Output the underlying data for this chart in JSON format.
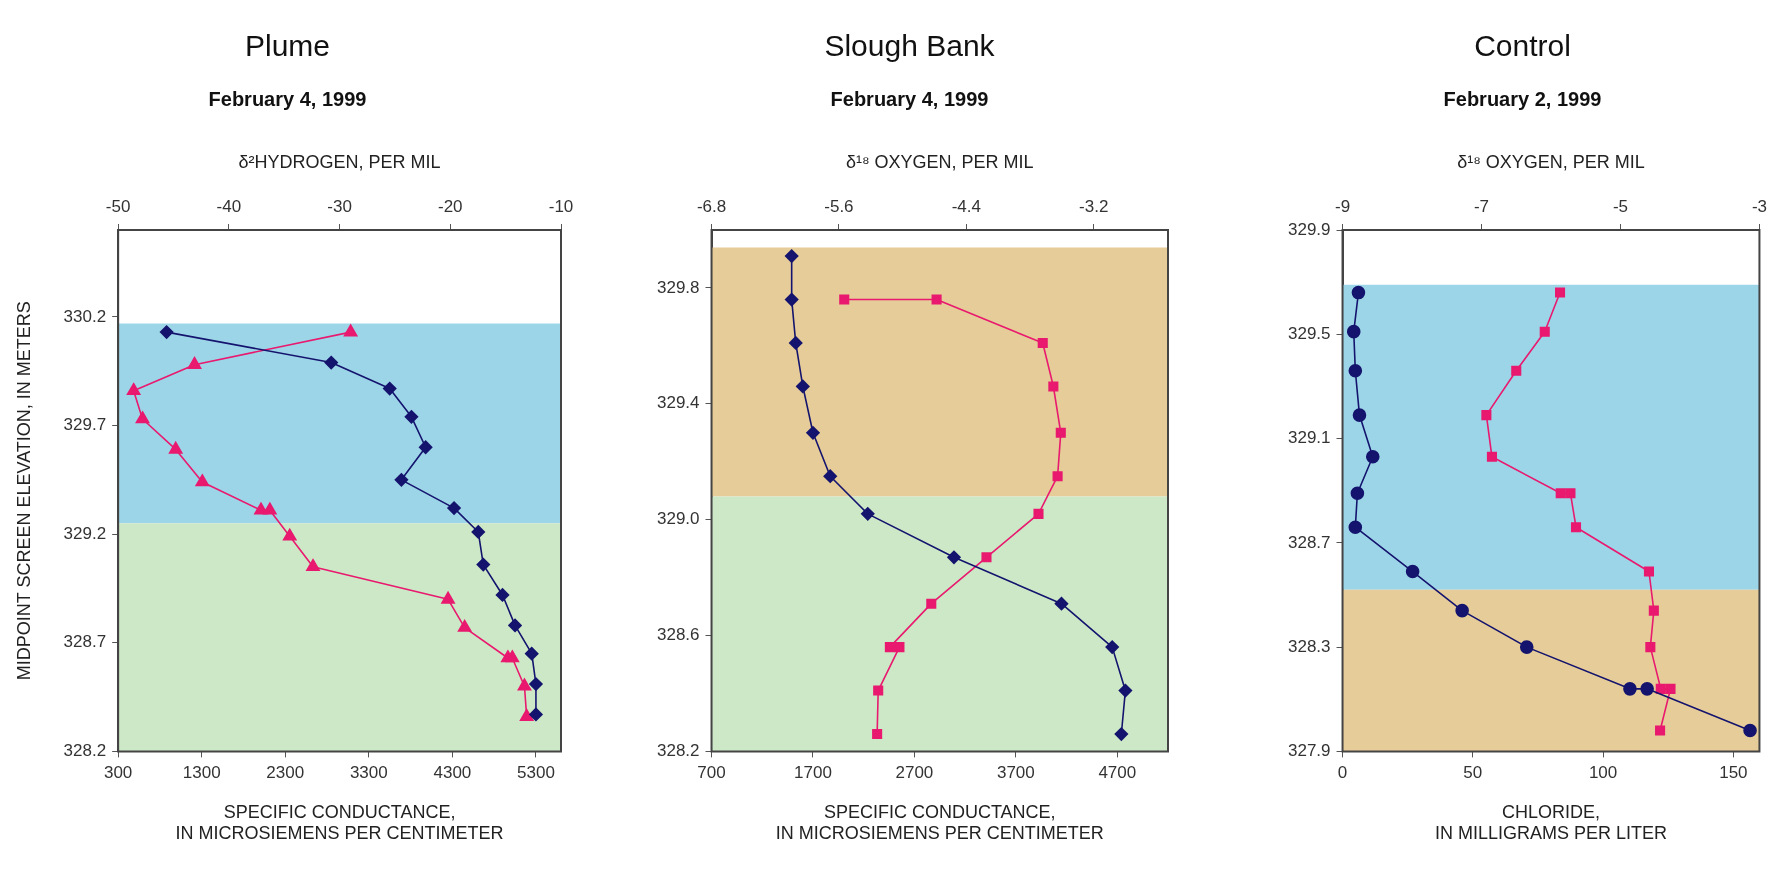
{
  "chart_data": [
    {
      "type": "line",
      "title": "Plume",
      "subtitle": "February 4, 1999",
      "xlabel": "SPECIFIC CONDUCTANCE,\nIN MICROSIEMENS PER CENTIMETER",
      "x2label": "δ²HYDROGEN, PER MIL",
      "ylabel": "MIDPOINT SCREEN ELEVATION, IN METERS",
      "xlim": [
        300,
        5600
      ],
      "xticks": [
        300,
        1300,
        2300,
        3300,
        4300,
        5300
      ],
      "x2lim": [
        -50,
        -10
      ],
      "x2ticks": [
        -50,
        -40,
        -30,
        -20,
        -10
      ],
      "ylim": [
        328.2,
        330.6
      ],
      "yticks": [
        328.2,
        328.7,
        329.2,
        329.7,
        330.2
      ],
      "bands": [
        {
          "axis": "y",
          "from": 329.25,
          "to": 330.17,
          "color": "#9dd5e8"
        },
        {
          "axis": "y",
          "from": 328.2,
          "to": 329.25,
          "color": "#cde8c6"
        }
      ],
      "series": [
        {
          "color": "#14146e",
          "marker": "diamond",
          "x": [
            880,
            2850,
            3550,
            3810,
            3980,
            3690,
            4320,
            4610,
            4670,
            4900,
            5050,
            5250,
            5300,
            5300
          ],
          "values": [
            330.13,
            329.99,
            329.87,
            329.74,
            329.6,
            329.45,
            329.32,
            329.21,
            329.06,
            328.92,
            328.78,
            328.65,
            328.51,
            328.37
          ]
        },
        {
          "color": "#e8196e",
          "marker": "triangle",
          "axis": "x2",
          "x": [
            -29,
            -43.1,
            -48.6,
            -47.8,
            -44.8,
            -42.4,
            -37.1,
            -36.3,
            -34.5,
            -32.4,
            -20.2,
            -18.7,
            -14.8,
            -14.4,
            -13.3,
            -13.1
          ],
          "values": [
            330.13,
            329.98,
            329.86,
            329.73,
            329.59,
            329.44,
            329.31,
            329.31,
            329.19,
            329.05,
            328.9,
            328.77,
            328.63,
            328.63,
            328.5,
            328.36
          ]
        }
      ]
    },
    {
      "type": "line",
      "title": "Slough Bank",
      "subtitle": "February 4, 1999",
      "xlabel": "SPECIFIC CONDUCTANCE,\nIN MICROSIEMENS PER CENTIMETER",
      "x2label": "δ¹⁸ OXYGEN, PER MIL",
      "xlim": [
        700,
        5200
      ],
      "xticks": [
        700,
        1700,
        2700,
        3700,
        4700
      ],
      "x2lim": [
        -6.8,
        -2.5
      ],
      "x2ticks": [
        -6.8,
        -5.6,
        -4.4,
        -3.2
      ],
      "ylim": [
        328.2,
        330.0
      ],
      "yticks": [
        328.2,
        328.6,
        {
          "value": 329,
          "label": "329.0"
        },
        329.4,
        329.8
      ],
      "bands": [
        {
          "axis": "y",
          "from": 329.08,
          "to": 329.94,
          "color": "#e6cc98"
        },
        {
          "axis": "y",
          "from": 328.2,
          "to": 329.08,
          "color": "#cde8c6"
        }
      ],
      "series": [
        {
          "color": "#14146e",
          "marker": "diamond",
          "x": [
            1490,
            1490,
            1530,
            1600,
            1700,
            1870,
            2240,
            3090,
            4150,
            4650,
            4780,
            4740
          ],
          "values": [
            329.91,
            329.76,
            329.61,
            329.46,
            329.3,
            329.15,
            329.02,
            328.87,
            328.71,
            328.56,
            328.41,
            328.26
          ]
        },
        {
          "color": "#e8196e",
          "marker": "square",
          "axis": "x2",
          "x": [
            -5.55,
            -4.68,
            -3.68,
            -3.58,
            -3.51,
            -3.54,
            -3.72,
            -4.21,
            -4.73,
            -5.12,
            -5.03,
            -5.23,
            -5.24
          ],
          "values": [
            329.76,
            329.76,
            329.61,
            329.46,
            329.3,
            329.15,
            329.02,
            328.87,
            328.71,
            328.56,
            328.56,
            328.41,
            328.26
          ]
        }
      ]
    },
    {
      "type": "line",
      "title": "Control",
      "subtitle": "February 2, 1999",
      "xlabel": "CHLORIDE,\nIN MILLIGRAMS PER LITER",
      "x2label": "δ¹⁸ OXYGEN, PER MIL",
      "xlim": [
        0,
        160
      ],
      "xticks": [
        0,
        50,
        100,
        150
      ],
      "x2lim": [
        -9,
        -3
      ],
      "x2ticks": [
        -9,
        -7,
        -5,
        -3
      ],
      "ylim": [
        327.9,
        329.9
      ],
      "yticks": [
        327.9,
        328.3,
        328.7,
        329.1,
        329.5,
        329.9
      ],
      "bands": [
        {
          "axis": "y",
          "from": 328.52,
          "to": 329.69,
          "color": "#9dd5e8"
        },
        {
          "axis": "y",
          "from": 327.9,
          "to": 328.52,
          "color": "#e6cc98"
        }
      ],
      "series": [
        {
          "color": "#14146e",
          "marker": "circle",
          "x": [
            6.1,
            4.3,
            4.9,
            6.5,
            11.6,
            5.7,
            4.9,
            26.9,
            45.9,
            70.7,
            110.3,
            116.9,
            156.4
          ],
          "values": [
            329.66,
            329.51,
            329.36,
            329.19,
            329.03,
            328.89,
            328.76,
            328.59,
            328.44,
            328.3,
            328.14,
            328.14,
            327.98
          ]
        },
        {
          "color": "#e8196e",
          "marker": "square",
          "axis": "x2",
          "x": [
            -5.87,
            -6.09,
            -6.5,
            -6.93,
            -6.85,
            -5.86,
            -5.72,
            -5.64,
            -4.59,
            -4.52,
            -4.57,
            -4.42,
            -4.28,
            -4.43
          ],
          "values": [
            329.66,
            329.51,
            329.36,
            329.19,
            329.03,
            328.89,
            328.89,
            328.76,
            328.59,
            328.44,
            328.3,
            328.14,
            328.14,
            327.98
          ]
        }
      ]
    }
  ]
}
